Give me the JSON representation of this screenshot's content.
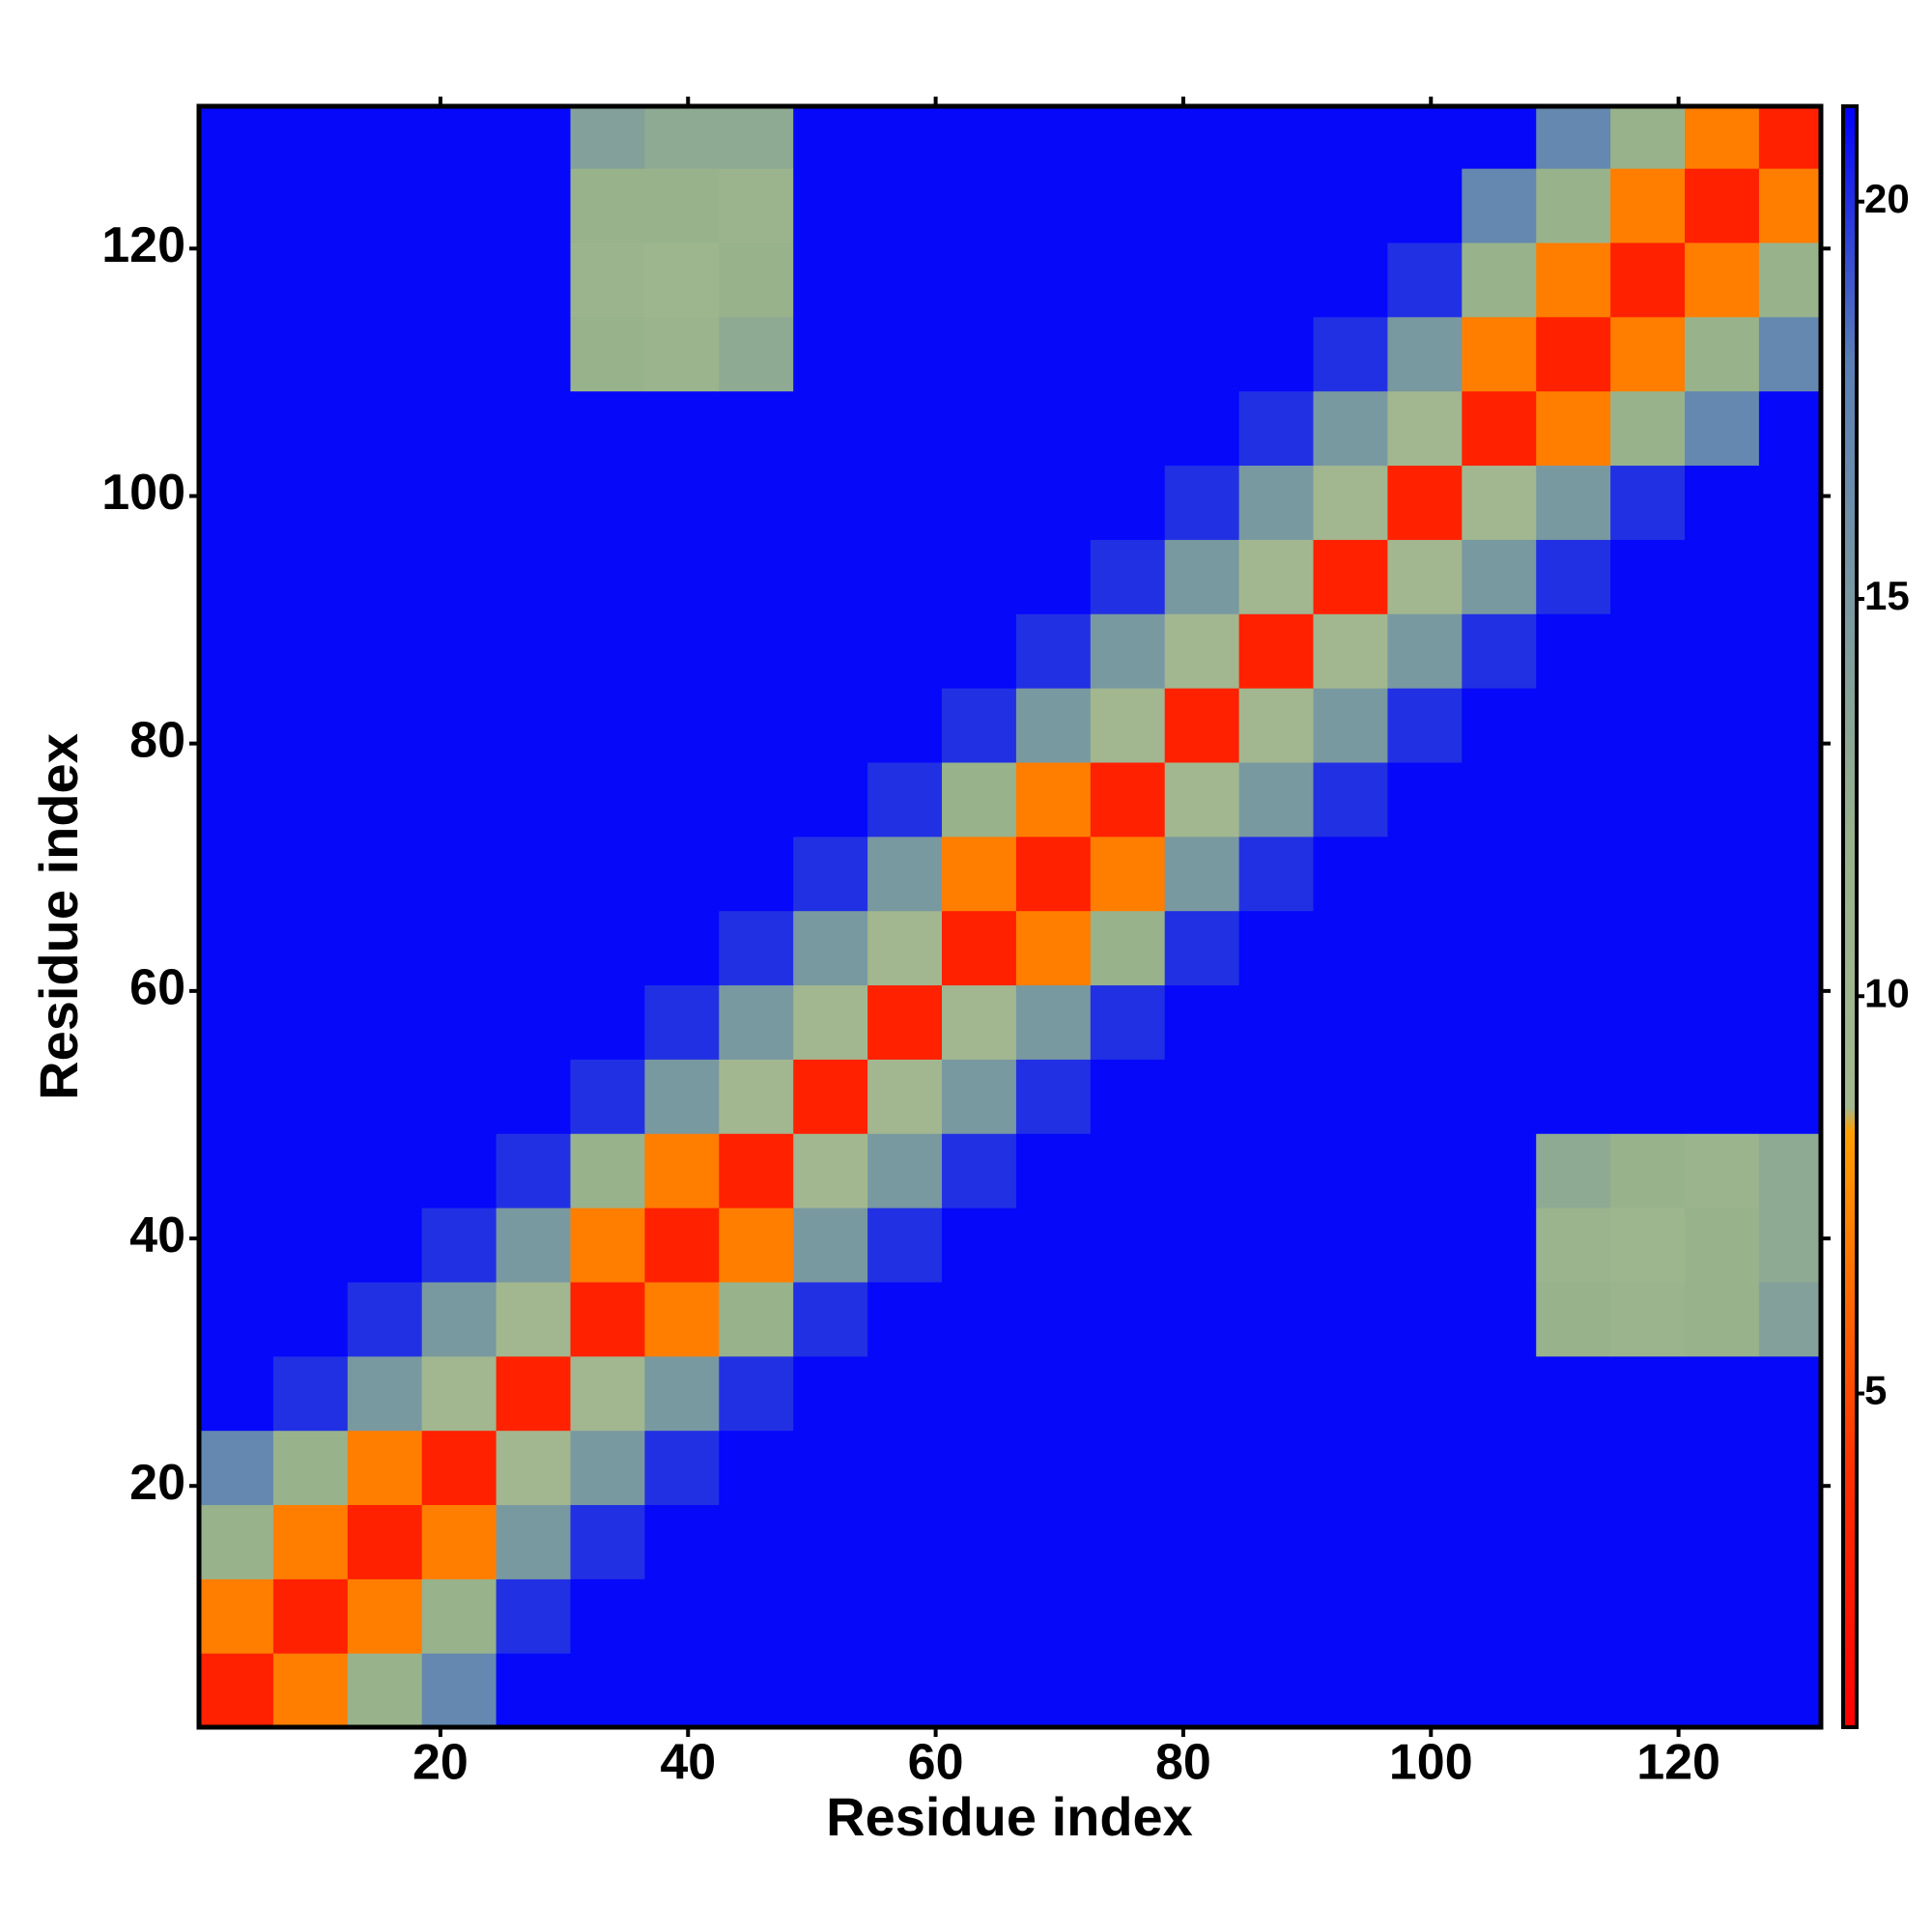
{
  "chart_data": {
    "type": "heatmap",
    "xlabel": "Residue index",
    "ylabel": "Residue index",
    "xbins": [
      0.5,
      6.5,
      12.5,
      18.5,
      24.5,
      30.5,
      36.5,
      42.5,
      48.5,
      54.5,
      60.5,
      66.5,
      72.5,
      78.5,
      84.5,
      90.5,
      96.5,
      102.5,
      108.5,
      114.5,
      120.5,
      126.5,
      131.5
    ],
    "ybins": [
      0.5,
      6.5,
      12.5,
      18.5,
      24.5,
      30.5,
      36.5,
      42.5,
      48.5,
      54.5,
      60.5,
      66.5,
      72.5,
      78.5,
      84.5,
      90.5,
      96.5,
      102.5,
      108.5,
      114.5,
      120.5,
      126.5,
      131.5
    ],
    "xlim": [
      0.5,
      131.5
    ],
    "ylim": [
      0.5,
      131.5
    ],
    "xticks": [
      20,
      40,
      60,
      80,
      100,
      120
    ],
    "yticks": [
      20,
      40,
      60,
      80,
      100,
      120
    ],
    "zlim": [
      0.8,
      21.2
    ],
    "zticks": [
      5,
      10,
      15,
      20
    ],
    "colorscale": [
      [
        0.8,
        "#ff0000"
      ],
      [
        4,
        "#ff3000"
      ],
      [
        8.3,
        "#ffa000"
      ],
      [
        8.6,
        "#a3b88f"
      ],
      [
        12,
        "#98b28c"
      ],
      [
        18,
        "#5a7fb6"
      ],
      [
        21.2,
        "#0000ff"
      ]
    ],
    "values": [
      [
        3,
        7,
        12,
        17,
        21,
        21,
        21,
        21,
        21,
        21,
        21,
        21,
        21,
        21,
        21,
        21,
        21,
        21,
        21,
        21,
        21,
        21
      ],
      [
        7,
        3,
        7,
        12,
        20,
        21,
        21,
        21,
        21,
        21,
        21,
        21,
        21,
        21,
        21,
        21,
        21,
        21,
        21,
        21,
        21,
        21
      ],
      [
        12,
        7,
        3,
        7,
        15,
        20,
        21,
        21,
        21,
        21,
        21,
        21,
        21,
        21,
        21,
        21,
        21,
        21,
        21,
        21,
        21,
        21
      ],
      [
        17,
        12,
        7,
        3,
        9,
        15,
        20,
        21,
        21,
        21,
        21,
        21,
        21,
        21,
        21,
        21,
        21,
        21,
        21,
        21,
        21,
        21
      ],
      [
        21,
        20,
        15,
        9,
        3,
        9,
        15,
        20,
        21,
        21,
        21,
        21,
        21,
        21,
        21,
        21,
        21,
        21,
        21,
        21,
        21,
        21
      ],
      [
        21,
        21,
        20,
        15,
        9,
        3,
        7,
        12,
        20,
        21,
        21,
        21,
        21,
        21,
        21,
        21,
        21,
        21,
        12,
        11,
        12,
        14
      ],
      [
        21,
        21,
        21,
        20,
        15,
        7,
        3,
        7,
        15,
        20,
        21,
        21,
        21,
        21,
        21,
        21,
        21,
        21,
        11,
        10,
        12,
        13
      ],
      [
        21,
        21,
        21,
        21,
        20,
        12,
        7,
        3,
        9,
        15,
        20,
        21,
        21,
        21,
        21,
        21,
        21,
        21,
        13,
        12,
        11,
        13
      ],
      [
        21,
        21,
        21,
        21,
        21,
        20,
        15,
        9,
        3,
        9,
        15,
        20,
        21,
        21,
        21,
        21,
        21,
        21,
        21,
        21,
        21,
        21
      ],
      [
        21,
        21,
        21,
        21,
        21,
        21,
        20,
        15,
        9,
        3,
        9,
        15,
        20,
        21,
        21,
        21,
        21,
        21,
        21,
        21,
        21,
        21
      ],
      [
        21,
        21,
        21,
        21,
        21,
        21,
        21,
        20,
        15,
        9,
        3,
        7,
        12,
        20,
        21,
        21,
        21,
        21,
        21,
        21,
        21,
        21
      ],
      [
        21,
        21,
        21,
        21,
        21,
        21,
        21,
        21,
        20,
        15,
        7,
        3,
        7,
        15,
        20,
        21,
        21,
        21,
        21,
        21,
        21,
        21
      ],
      [
        21,
        21,
        21,
        21,
        21,
        21,
        21,
        21,
        21,
        20,
        12,
        7,
        3,
        9,
        15,
        20,
        21,
        21,
        21,
        21,
        21,
        21
      ],
      [
        21,
        21,
        21,
        21,
        21,
        21,
        21,
        21,
        21,
        21,
        20,
        15,
        9,
        3,
        9,
        15,
        20,
        21,
        21,
        21,
        21,
        21
      ],
      [
        21,
        21,
        21,
        21,
        21,
        21,
        21,
        21,
        21,
        21,
        21,
        20,
        15,
        9,
        3,
        9,
        15,
        20,
        21,
        21,
        21,
        21
      ],
      [
        21,
        21,
        21,
        21,
        21,
        21,
        21,
        21,
        21,
        21,
        21,
        21,
        20,
        15,
        9,
        3,
        9,
        15,
        20,
        21,
        21,
        21
      ],
      [
        21,
        21,
        21,
        21,
        21,
        21,
        21,
        21,
        21,
        21,
        21,
        21,
        21,
        20,
        15,
        9,
        3,
        9,
        15,
        20,
        21,
        21
      ],
      [
        21,
        21,
        21,
        21,
        21,
        21,
        21,
        21,
        21,
        21,
        21,
        21,
        21,
        21,
        20,
        15,
        9,
        3,
        7,
        12,
        17,
        21
      ],
      [
        21,
        21,
        21,
        21,
        21,
        12,
        11,
        13,
        21,
        21,
        21,
        21,
        21,
        21,
        21,
        20,
        15,
        7,
        3,
        7,
        12,
        17
      ],
      [
        21,
        21,
        21,
        21,
        21,
        11,
        10,
        12,
        21,
        21,
        21,
        21,
        21,
        21,
        21,
        21,
        20,
        12,
        7,
        3,
        7,
        12
      ],
      [
        21,
        21,
        21,
        21,
        21,
        12,
        12,
        11,
        21,
        21,
        21,
        21,
        21,
        21,
        21,
        21,
        21,
        17,
        12,
        7,
        3,
        7
      ],
      [
        21,
        21,
        21,
        21,
        21,
        14,
        13,
        13,
        21,
        21,
        21,
        21,
        21,
        21,
        21,
        21,
        21,
        21,
        17,
        12,
        7,
        3
      ]
    ]
  }
}
